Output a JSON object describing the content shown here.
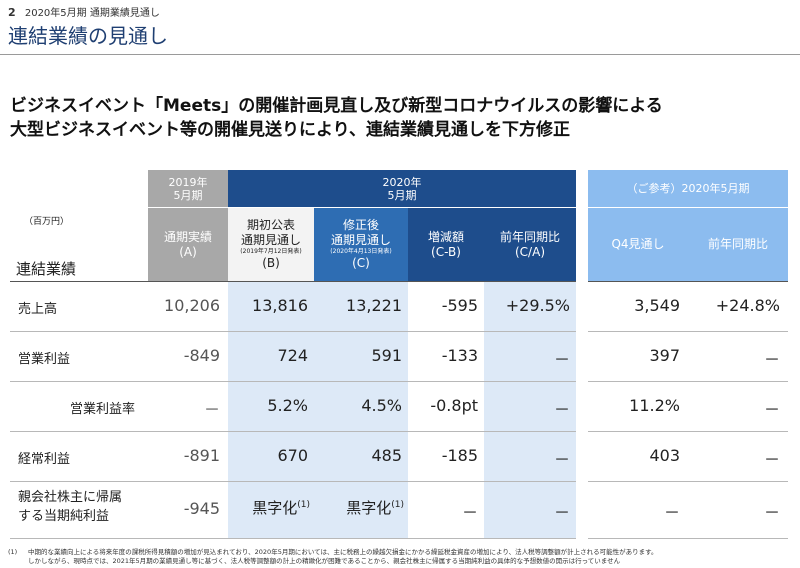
{
  "header": {
    "page_number": "2",
    "section": "2020年5月期 通期業績見通し",
    "title": "連結業績の見通し"
  },
  "headline": {
    "line1": "ビジネスイベント「Meets」の開催計画見直し及び新型コロナウイルスの影響による",
    "line2": "大型ビジネスイベント等の開催見送りにより、連結業績見通しを下方修正"
  },
  "table": {
    "unit": "（百万円）",
    "row_header": "連結業績",
    "group_2019": "2019年\n5月期",
    "group_2020": "2020年\n5月期",
    "group_ref": "（ご参考）2020年5月期",
    "cols": {
      "a": {
        "line1": "通期実績",
        "line2": "(A)"
      },
      "b": {
        "line1": "期初公表",
        "line2": "通期見通し",
        "note": "(2019年7月12日発表)",
        "line3": "(B)"
      },
      "c": {
        "line1": "修正後",
        "line2": "通期見通し",
        "note": "(2020年4月13日発表)",
        "line3": "(C)"
      },
      "cb": {
        "line1": "増減額",
        "line2": "(C-B)"
      },
      "ca": {
        "line1": "前年同期比",
        "line2": "(C/A)"
      },
      "q4": {
        "line1": "Q4見通し"
      },
      "yoy": {
        "line1": "前年同期比"
      }
    },
    "rows": [
      {
        "label": "売上高",
        "a": "10,206",
        "b": "13,816",
        "c": "13,221",
        "cb": "-595",
        "ca": "+29.5%",
        "q4": "3,549",
        "yoy": "+24.8%"
      },
      {
        "label": "営業利益",
        "a": "-849",
        "b": "724",
        "c": "591",
        "cb": "-133",
        "ca": "－",
        "q4": "397",
        "yoy": "－"
      },
      {
        "label": "営業利益率",
        "a": "－",
        "b": "5.2%",
        "c": "4.5%",
        "cb": "-0.8pt",
        "ca": "－",
        "q4": "11.2%",
        "yoy": "－"
      },
      {
        "label": "経常利益",
        "a": "-891",
        "b": "670",
        "c": "485",
        "cb": "-185",
        "ca": "－",
        "q4": "403",
        "yoy": "－"
      },
      {
        "label_line1": "親会社株主に帰属",
        "label_line2": "する当期純利益",
        "a": "-945",
        "b": "黒字化",
        "b_note": "(1)",
        "c": "黒字化",
        "c_note": "(1)",
        "cb": "－",
        "ca": "－",
        "q4": "－",
        "yoy": "－"
      }
    ]
  },
  "footnote": {
    "mark": "(1)",
    "line1": "中期的な業績向上による将来年度の課税所得見積額の増加が見込まれており、2020年5月期においては、主に税務上の繰越欠損金にかかる繰延税金資産の増加により、法人税等調整額が計上される可能性があります。",
    "line2": "しかしながら、現時点では、2021年5月期の業績見通し等に基づく、法人税等調整額の計上の精緻化が困難であることから、親会社株主に帰属する当期純利益の具体的な予想数値の開示は行っていません"
  }
}
